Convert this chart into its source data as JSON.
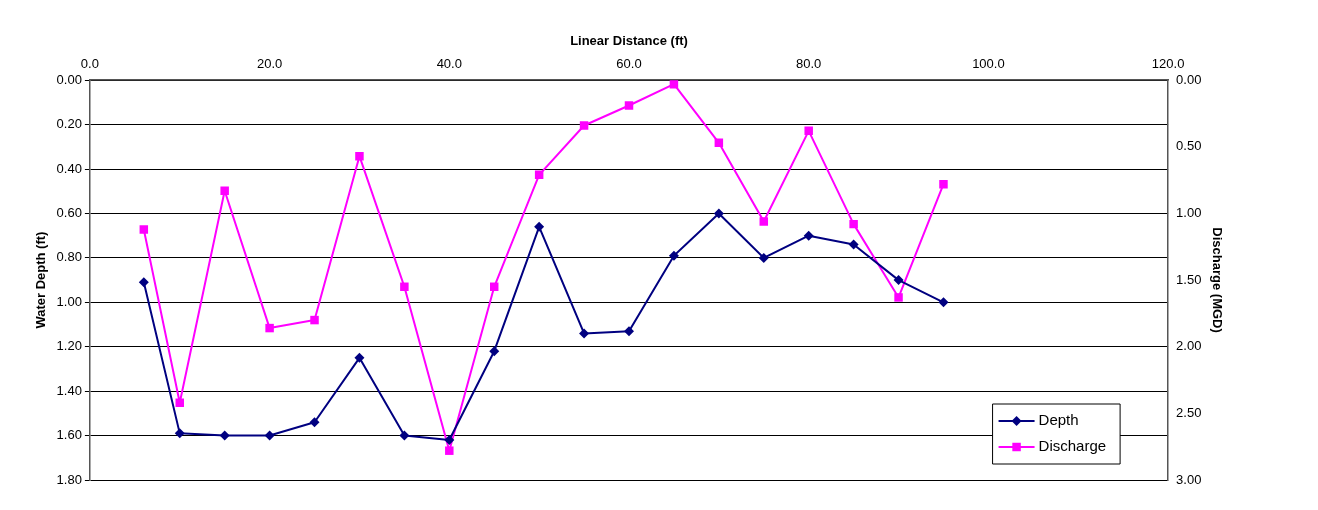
{
  "chart_data": {
    "type": "line",
    "xlabel": "Linear Distance (ft)",
    "ylabel": "Water Depth (ft)",
    "y2label": "Discharge (MGD)",
    "x": [
      6,
      10,
      15,
      20,
      25,
      30,
      35,
      40,
      45,
      50,
      55,
      60,
      65,
      70,
      75,
      80,
      85,
      90,
      95
    ],
    "series": [
      {
        "name": "Depth",
        "color": "#000080",
        "marker": "diamond",
        "values": [
          0.91,
          1.59,
          1.6,
          1.6,
          1.54,
          1.25,
          1.6,
          1.62,
          1.22,
          0.66,
          1.14,
          1.13,
          0.79,
          0.6,
          0.8,
          0.7,
          0.74,
          0.9,
          1.0
        ]
      },
      {
        "name": "Discharge",
        "color": "#ff00ff",
        "marker": "square",
        "axis": "y2",
        "values": [
          1.12,
          2.42,
          0.83,
          1.86,
          1.8,
          0.57,
          1.55,
          2.78,
          1.55,
          0.71,
          0.34,
          0.19,
          0.03,
          0.47,
          1.06,
          0.38,
          1.08,
          1.63,
          0.78
        ]
      }
    ],
    "xlim": [
      0,
      120
    ],
    "xticks": [
      {
        "value": 0,
        "label": "0.0"
      },
      {
        "value": 20,
        "label": "20.0"
      },
      {
        "value": 40,
        "label": "40.0"
      },
      {
        "value": 60,
        "label": "60.0"
      },
      {
        "value": 80,
        "label": "80.0"
      },
      {
        "value": 100,
        "label": "100.0"
      },
      {
        "value": 120,
        "label": "120.0"
      }
    ],
    "ylim": [
      1.8,
      0
    ],
    "yticks": [
      {
        "value": 0,
        "label": "0.00"
      },
      {
        "value": 0.2,
        "label": "0.20"
      },
      {
        "value": 0.4,
        "label": "0.40"
      },
      {
        "value": 0.6,
        "label": "0.60"
      },
      {
        "value": 0.8,
        "label": "0.80"
      },
      {
        "value": 1,
        "label": "1.00"
      },
      {
        "value": 1.2,
        "label": "1.20"
      },
      {
        "value": 1.4,
        "label": "1.40"
      },
      {
        "value": 1.6,
        "label": "1.60"
      },
      {
        "value": 1.8,
        "label": "1.80"
      }
    ],
    "y2lim": [
      3,
      0
    ],
    "y2ticks": [
      {
        "value": 0,
        "label": "0.00"
      },
      {
        "value": 0.5,
        "label": "0.50"
      },
      {
        "value": 1,
        "label": "1.00"
      },
      {
        "value": 1.5,
        "label": "1.50"
      },
      {
        "value": 2,
        "label": "2.00"
      },
      {
        "value": 2.5,
        "label": "2.50"
      },
      {
        "value": 3,
        "label": "3.00"
      }
    ],
    "grid": "y",
    "legend": "bottom right",
    "line_style": "solid"
  }
}
